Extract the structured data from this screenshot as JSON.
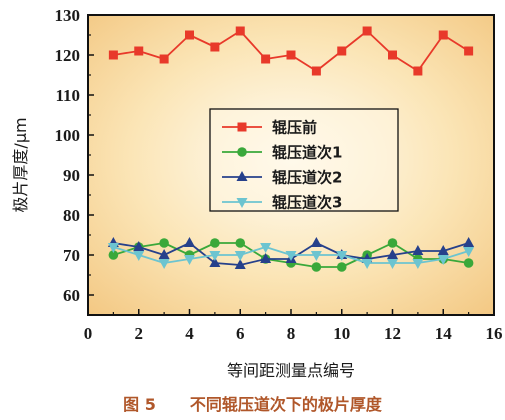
{
  "chart_data": {
    "type": "line",
    "xlabel": "等间距测量点编号",
    "ylabel": "极片厚度/μm",
    "xlim": [
      0,
      16
    ],
    "ylim": [
      55,
      130
    ],
    "xticks": [
      "0",
      "2",
      "4",
      "6",
      "8",
      "10",
      "12",
      "14",
      "16"
    ],
    "yticks": [
      "60",
      "70",
      "80",
      "90",
      "100",
      "110",
      "120",
      "130"
    ],
    "grid": false,
    "legend_position": "center",
    "x": [
      1,
      2,
      3,
      4,
      5,
      6,
      7,
      8,
      9,
      10,
      11,
      12,
      13,
      14,
      15
    ],
    "series": [
      {
        "name": "辊压前",
        "color": "#e8392a",
        "marker": "square",
        "values": [
          120,
          121,
          119,
          125,
          122,
          126,
          119,
          120,
          116,
          121,
          126,
          120,
          116,
          125,
          121
        ]
      },
      {
        "name": "辊压道次1",
        "color": "#3aa83a",
        "marker": "circle",
        "values": [
          70,
          72,
          73,
          70,
          73,
          73,
          69,
          68,
          67,
          67,
          70,
          73,
          69,
          69,
          68
        ]
      },
      {
        "name": "辊压道次2",
        "color": "#26408b",
        "marker": "triangle-up",
        "values": [
          73,
          72,
          70,
          73,
          68,
          67.5,
          69,
          69,
          73,
          70,
          69,
          70,
          71,
          71,
          73
        ]
      },
      {
        "name": "辊压道次3",
        "color": "#6cc4d0",
        "marker": "triangle-down",
        "values": [
          72,
          70,
          68,
          69,
          70,
          70,
          72,
          70,
          70,
          70,
          68,
          68,
          68,
          69,
          71
        ]
      }
    ]
  },
  "caption": {
    "label": "图 5",
    "text": "不同辊压道次下的极片厚度"
  }
}
